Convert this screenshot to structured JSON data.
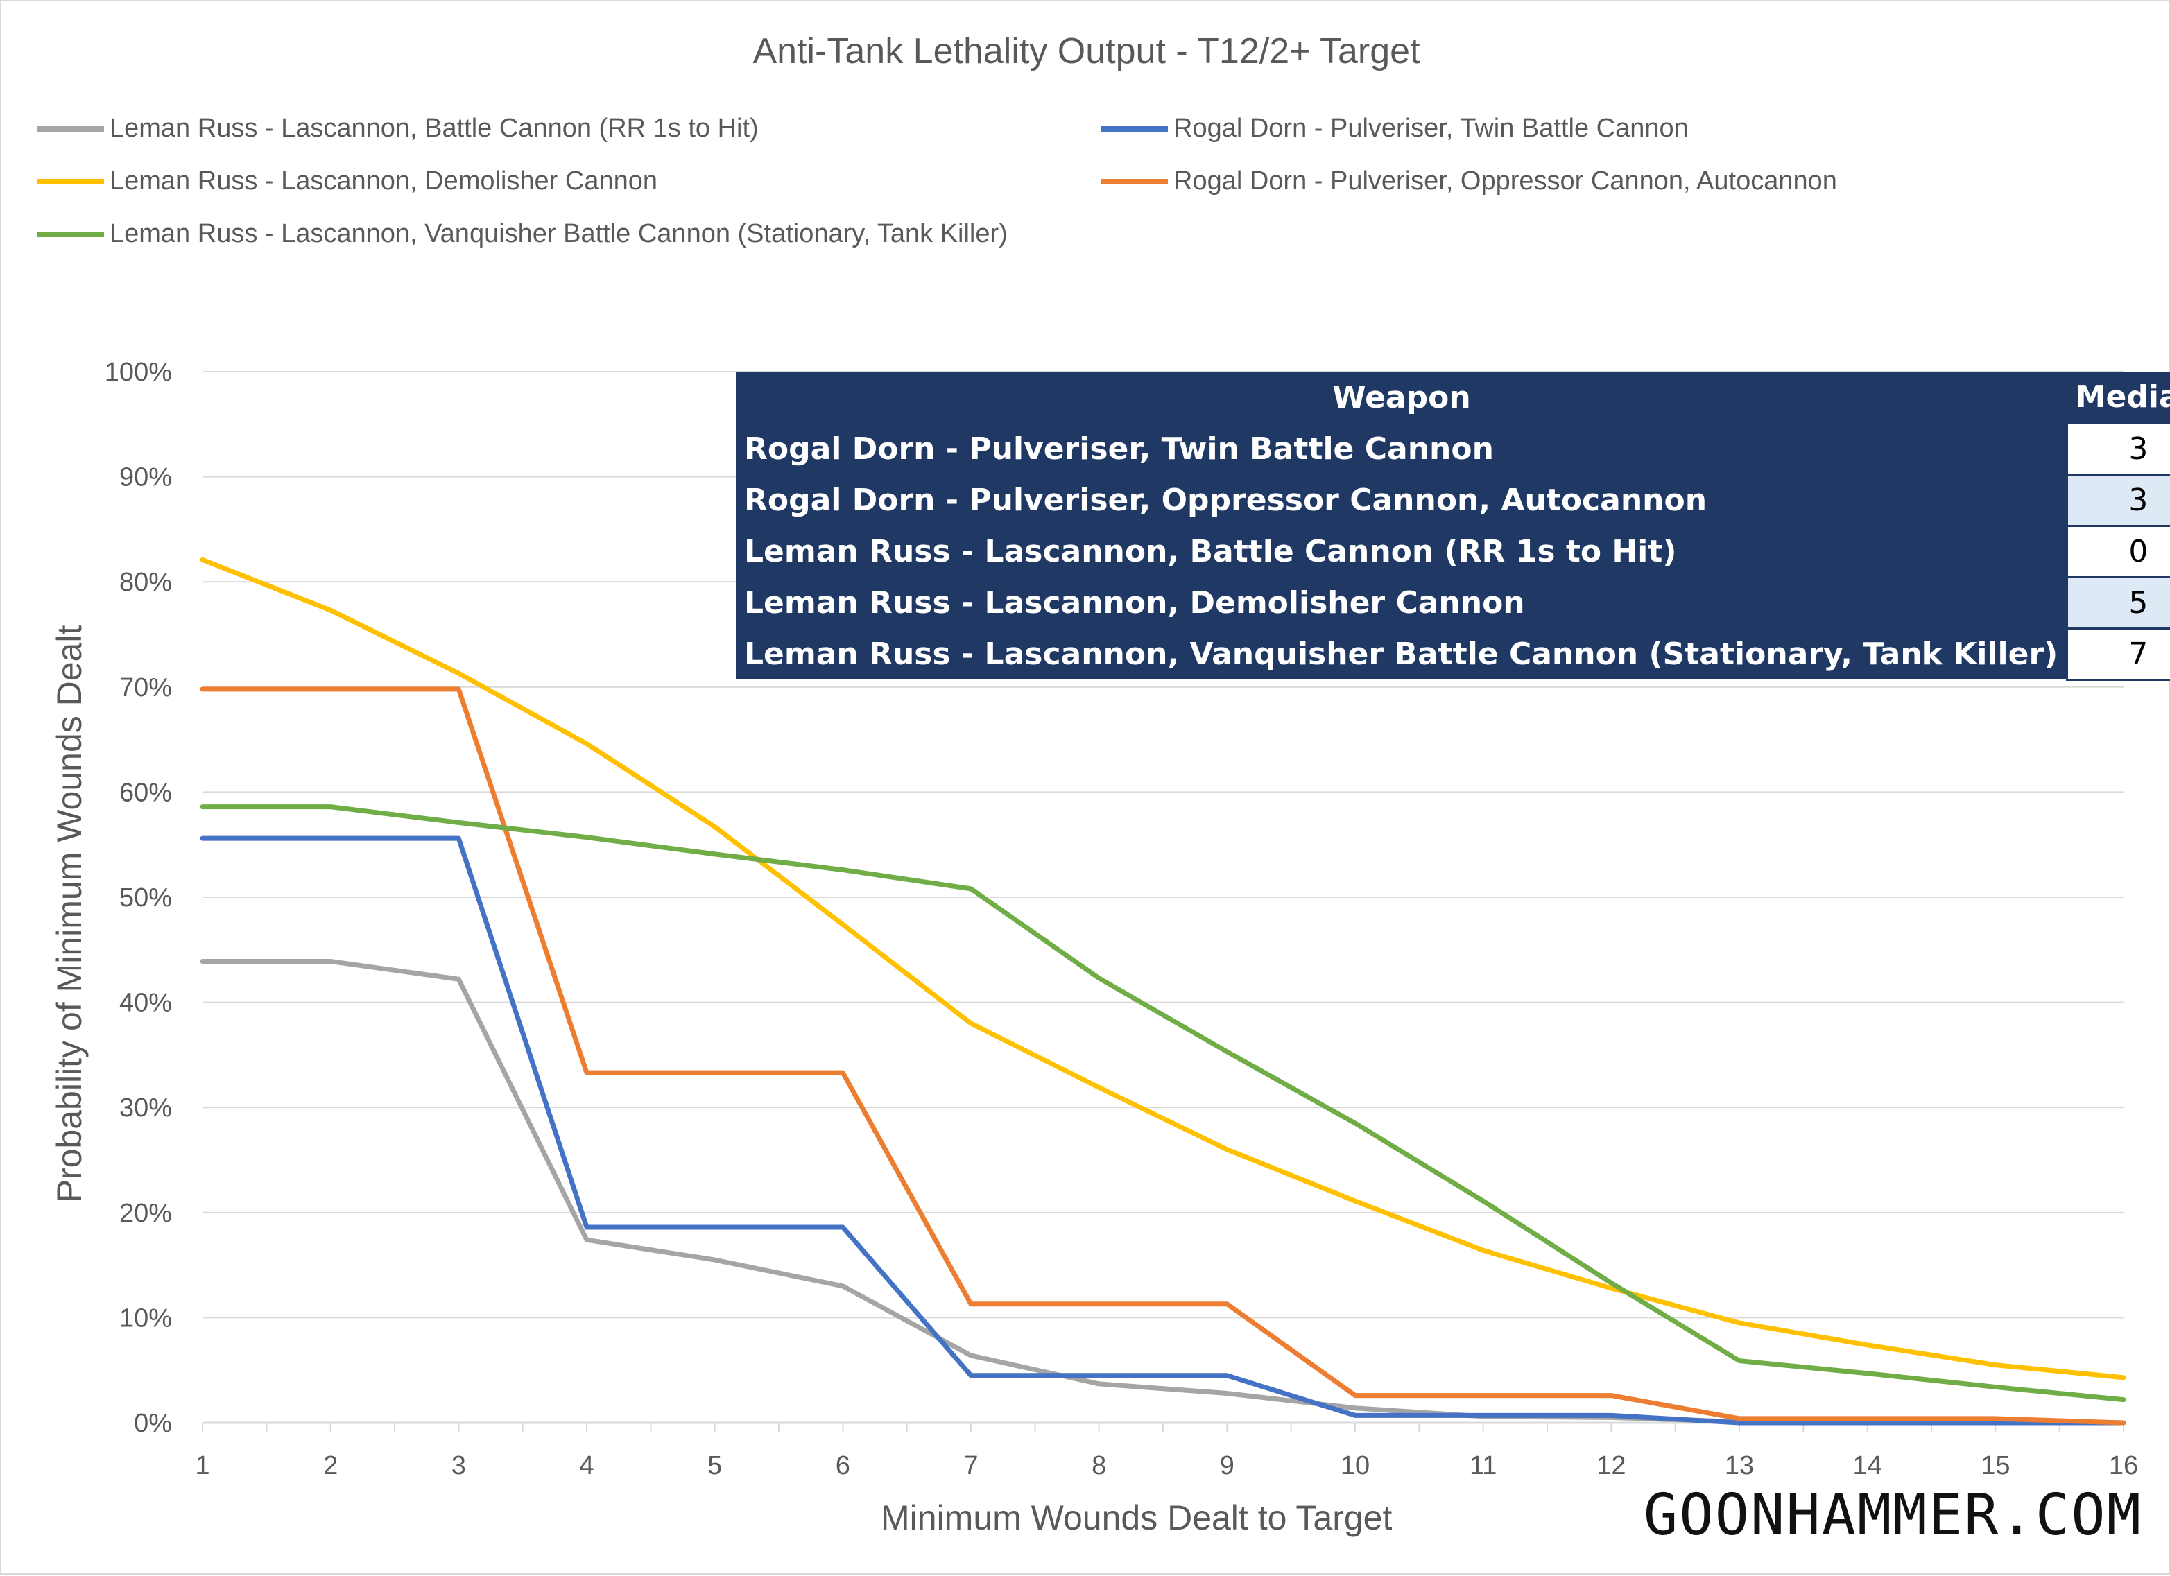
{
  "chart_data": {
    "type": "line",
    "title": "Anti-Tank Lethality Output - T12/2+ Target",
    "xlabel": "Minimum Wounds Dealt to Target",
    "ylabel": "Probability of Minimum Wounds Dealt",
    "x": [
      1,
      2,
      3,
      4,
      5,
      6,
      7,
      8,
      9,
      10,
      11,
      12,
      13,
      14,
      15,
      16
    ],
    "x_ticks": [
      "1",
      "2",
      "3",
      "4",
      "5",
      "6",
      "7",
      "8",
      "9",
      "10",
      "11",
      "12",
      "13",
      "14",
      "15",
      "16"
    ],
    "ylim": [
      0,
      100
    ],
    "y_ticks": [
      "0%",
      "10%",
      "20%",
      "30%",
      "40%",
      "50%",
      "60%",
      "70%",
      "80%",
      "90%",
      "100%"
    ],
    "grid": true,
    "legend_position": "top",
    "series": [
      {
        "name": "Leman Russ - Lascannon, Battle Cannon (RR 1s to Hit)",
        "color": "#a5a5a5",
        "values": [
          43.9,
          43.9,
          42.2,
          17.4,
          15.5,
          13.0,
          6.4,
          3.7,
          2.8,
          1.4,
          0.6,
          0.5,
          0.1,
          0.0,
          0.0,
          0.0
        ]
      },
      {
        "name": "Rogal Dorn - Pulveriser, Twin Battle Cannon",
        "color": "#4472c4",
        "values": [
          55.6,
          55.6,
          55.6,
          18.6,
          18.6,
          18.6,
          4.5,
          4.5,
          4.5,
          0.7,
          0.7,
          0.7,
          0.0,
          0.0,
          0.0,
          0.0
        ]
      },
      {
        "name": "Leman Russ - Lascannon, Demolisher Cannon",
        "color": "#ffc000",
        "values": [
          82.1,
          77.3,
          71.3,
          64.6,
          56.7,
          47.4,
          38.0,
          31.9,
          26.0,
          21.1,
          16.4,
          12.8,
          9.5,
          7.4,
          5.5,
          4.3
        ]
      },
      {
        "name": "Rogal Dorn - Pulveriser, Oppressor Cannon, Autocannon",
        "color": "#ed7d31",
        "values": [
          69.8,
          69.8,
          69.8,
          33.3,
          33.3,
          33.3,
          11.3,
          11.3,
          11.3,
          2.6,
          2.6,
          2.6,
          0.4,
          0.4,
          0.4,
          0.0
        ]
      },
      {
        "name": "Leman Russ - Lascannon, Vanquisher Battle Cannon (Stationary, Tank Killer)",
        "color": "#70ad47",
        "values": [
          58.6,
          58.6,
          57.1,
          55.7,
          54.1,
          52.6,
          50.8,
          42.3,
          35.3,
          28.5,
          21.1,
          13.3,
          5.9,
          4.7,
          3.4,
          2.2
        ]
      }
    ]
  },
  "median_table": {
    "header_weapon": "Weapon",
    "header_median": "Median",
    "rows": [
      {
        "weapon": "Rogal Dorn - Pulveriser, Twin Battle Cannon",
        "median": "3"
      },
      {
        "weapon": "Rogal Dorn - Pulveriser, Oppressor Cannon, Autocannon",
        "median": "3"
      },
      {
        "weapon": "Leman Russ - Lascannon, Battle Cannon (RR 1s to Hit)",
        "median": "0"
      },
      {
        "weapon": "Leman Russ - Lascannon, Demolisher Cannon",
        "median": "5"
      },
      {
        "weapon": "Leman Russ - Lascannon, Vanquisher Battle Cannon (Stationary, Tank Killer)",
        "median": "7"
      }
    ]
  },
  "branding": "GOONHAMMER.COM"
}
